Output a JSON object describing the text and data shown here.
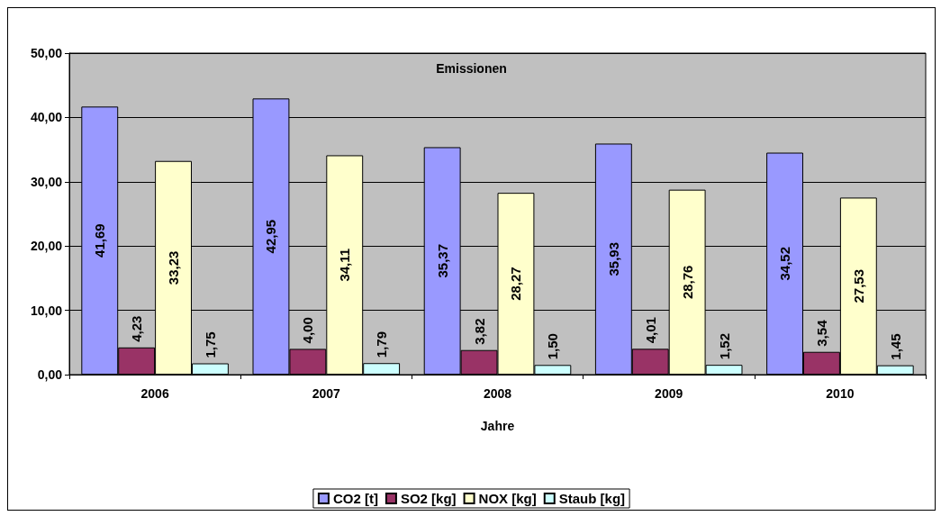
{
  "chart_data": {
    "type": "bar",
    "title": "Emissionen",
    "xlabel": "Jahre",
    "categories": [
      "2006",
      "2007",
      "2008",
      "2009",
      "2010"
    ],
    "series": [
      {
        "name": "CO2 [t]",
        "color": "#9999ff",
        "values": [
          41.69,
          42.95,
          35.37,
          35.93,
          34.52
        ],
        "value_labels": [
          "41,69",
          "42,95",
          "35,37",
          "35,93",
          "34,52"
        ]
      },
      {
        "name": "SO2 [kg]",
        "color": "#993366",
        "values": [
          4.23,
          4.0,
          3.82,
          4.01,
          3.54
        ],
        "value_labels": [
          "4,23",
          "4,00",
          "3,82",
          "4,01",
          "3,54"
        ]
      },
      {
        "name": "NOX [kg]",
        "color": "#ffffcc",
        "values": [
          33.23,
          34.11,
          28.27,
          28.76,
          27.53
        ],
        "value_labels": [
          "33,23",
          "34,11",
          "28,27",
          "28,76",
          "27,53"
        ]
      },
      {
        "name": "Staub [kg]",
        "color": "#ccffff",
        "values": [
          1.75,
          1.79,
          1.5,
          1.52,
          1.45
        ],
        "value_labels": [
          "1,75",
          "1,79",
          "1,50",
          "1,52",
          "1,45"
        ]
      }
    ],
    "ylim": [
      0,
      50
    ],
    "yticks": [
      {
        "value": 0,
        "label": "0,00"
      },
      {
        "value": 10,
        "label": "10,00"
      },
      {
        "value": 20,
        "label": "20,00"
      },
      {
        "value": 30,
        "label": "30,00"
      },
      {
        "value": 40,
        "label": "40,00"
      },
      {
        "value": 50,
        "label": "50,00"
      }
    ],
    "grid": "y",
    "legend": "bottom"
  }
}
